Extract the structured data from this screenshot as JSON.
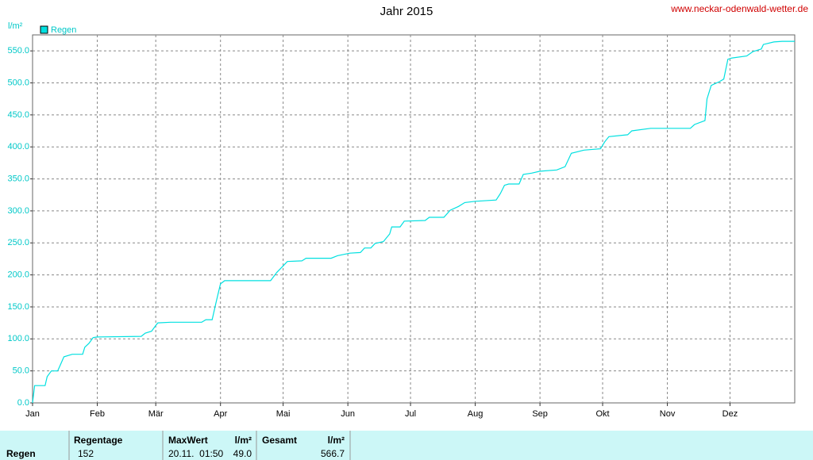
{
  "chart_data": {
    "type": "line",
    "title": "Jahr 2015",
    "source": "www.neckar-odenwald-wetter.de",
    "y_label": "l/m²",
    "legend": "top-left",
    "grid": true,
    "xlim": [
      0,
      365
    ],
    "xticks": [
      {
        "value": 0,
        "label": "Jan"
      },
      {
        "value": 31,
        "label": "Feb"
      },
      {
        "value": 59,
        "label": "Mär"
      },
      {
        "value": 90,
        "label": "Apr"
      },
      {
        "value": 120,
        "label": "Mai"
      },
      {
        "value": 151,
        "label": "Jun"
      },
      {
        "value": 181,
        "label": "Jul"
      },
      {
        "value": 212,
        "label": "Aug"
      },
      {
        "value": 243,
        "label": "Sep"
      },
      {
        "value": 273,
        "label": "Okt"
      },
      {
        "value": 304,
        "label": "Nov"
      },
      {
        "value": 334,
        "label": "Dez"
      }
    ],
    "ylim": [
      0,
      575
    ],
    "yticks": [
      {
        "value": 0,
        "label": "0.0"
      },
      {
        "value": 50,
        "label": "50.0"
      },
      {
        "value": 100,
        "label": "100.0"
      },
      {
        "value": 150,
        "label": "150.0"
      },
      {
        "value": 200,
        "label": "200.0"
      },
      {
        "value": 250,
        "label": "250.0"
      },
      {
        "value": 300,
        "label": "300.0"
      },
      {
        "value": 350,
        "label": "350.0"
      },
      {
        "value": 400,
        "label": "400.0"
      },
      {
        "value": 450,
        "label": "450.0"
      },
      {
        "value": 500,
        "label": "500.0"
      },
      {
        "value": 550,
        "label": "550.0"
      }
    ],
    "series": [
      {
        "name": "Regen",
        "color": "#00e0e0",
        "x": [
          0,
          1,
          6,
          7,
          9,
          12,
          13,
          15,
          19,
          24,
          25,
          27,
          29,
          31,
          52,
          54,
          57,
          59,
          60,
          66,
          81,
          83,
          86,
          88,
          90,
          92,
          114,
          117,
          120,
          122,
          129,
          131,
          143,
          146,
          152,
          157,
          159,
          162,
          164,
          168,
          171,
          172,
          176,
          178,
          188,
          190,
          197,
          200,
          204,
          207,
          212,
          222,
          224,
          226,
          228,
          233,
          235,
          239,
          243,
          251,
          255,
          258,
          264,
          272,
          274,
          276,
          285,
          287,
          296,
          315,
          317,
          322,
          323,
          325,
          329,
          331,
          333,
          335,
          342,
          345,
          349,
          350,
          355,
          359,
          365
        ],
        "values": [
          0,
          27,
          27,
          41,
          50,
          50,
          57,
          72,
          76,
          76,
          87,
          93,
          102,
          103,
          104,
          109,
          112,
          121,
          125,
          126,
          126,
          130,
          130,
          159,
          186,
          191,
          191,
          204,
          214,
          221,
          222,
          226,
          226,
          230,
          234,
          235,
          242,
          242,
          249,
          252,
          264,
          275,
          275,
          284,
          285,
          290,
          290,
          301,
          307,
          313,
          315,
          317,
          327,
          340,
          342,
          342,
          357,
          359,
          362,
          364,
          369,
          390,
          395,
          397,
          408,
          416,
          419,
          425,
          429,
          429,
          435,
          441,
          475,
          496,
          502,
          506,
          537,
          539,
          542,
          549,
          553,
          560,
          564,
          565,
          565
        ]
      }
    ]
  },
  "table": {
    "headers": [
      "Regentage",
      "MaxWert",
      "l/m²",
      "Gesamt",
      "l/m²"
    ],
    "rows": [
      [
        "Regen",
        "152",
        "20.11.  01:50",
        "49.0",
        "566.7"
      ]
    ]
  }
}
